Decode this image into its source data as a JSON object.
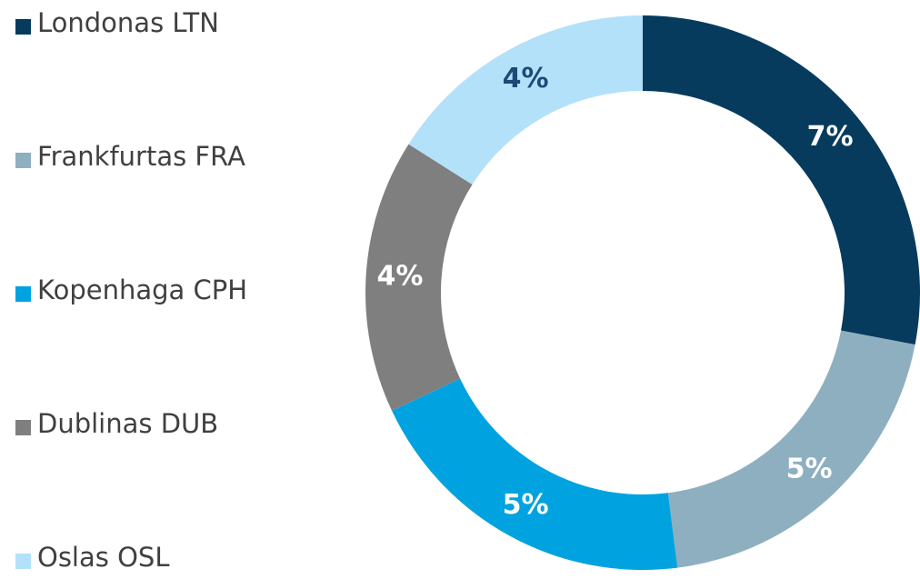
{
  "chart_data": {
    "type": "donut",
    "categories": [
      "Londonas LTN",
      "Frankfurtas FRA",
      "Kopenhaga CPH",
      "Dublinas DUB",
      "Oslas OSL"
    ],
    "values": [
      7,
      5,
      5,
      4,
      4
    ],
    "value_labels": [
      "7%",
      "5%",
      "5%",
      "4%",
      "4%"
    ],
    "colors": [
      "#063b5d",
      "#8eafbf",
      "#00a3e0",
      "#7f7f7f",
      "#b4e1fa"
    ],
    "label_colors": [
      "#ffffff",
      "#ffffff",
      "#ffffff",
      "#ffffff",
      "#1b4a78"
    ],
    "legend": "left"
  }
}
